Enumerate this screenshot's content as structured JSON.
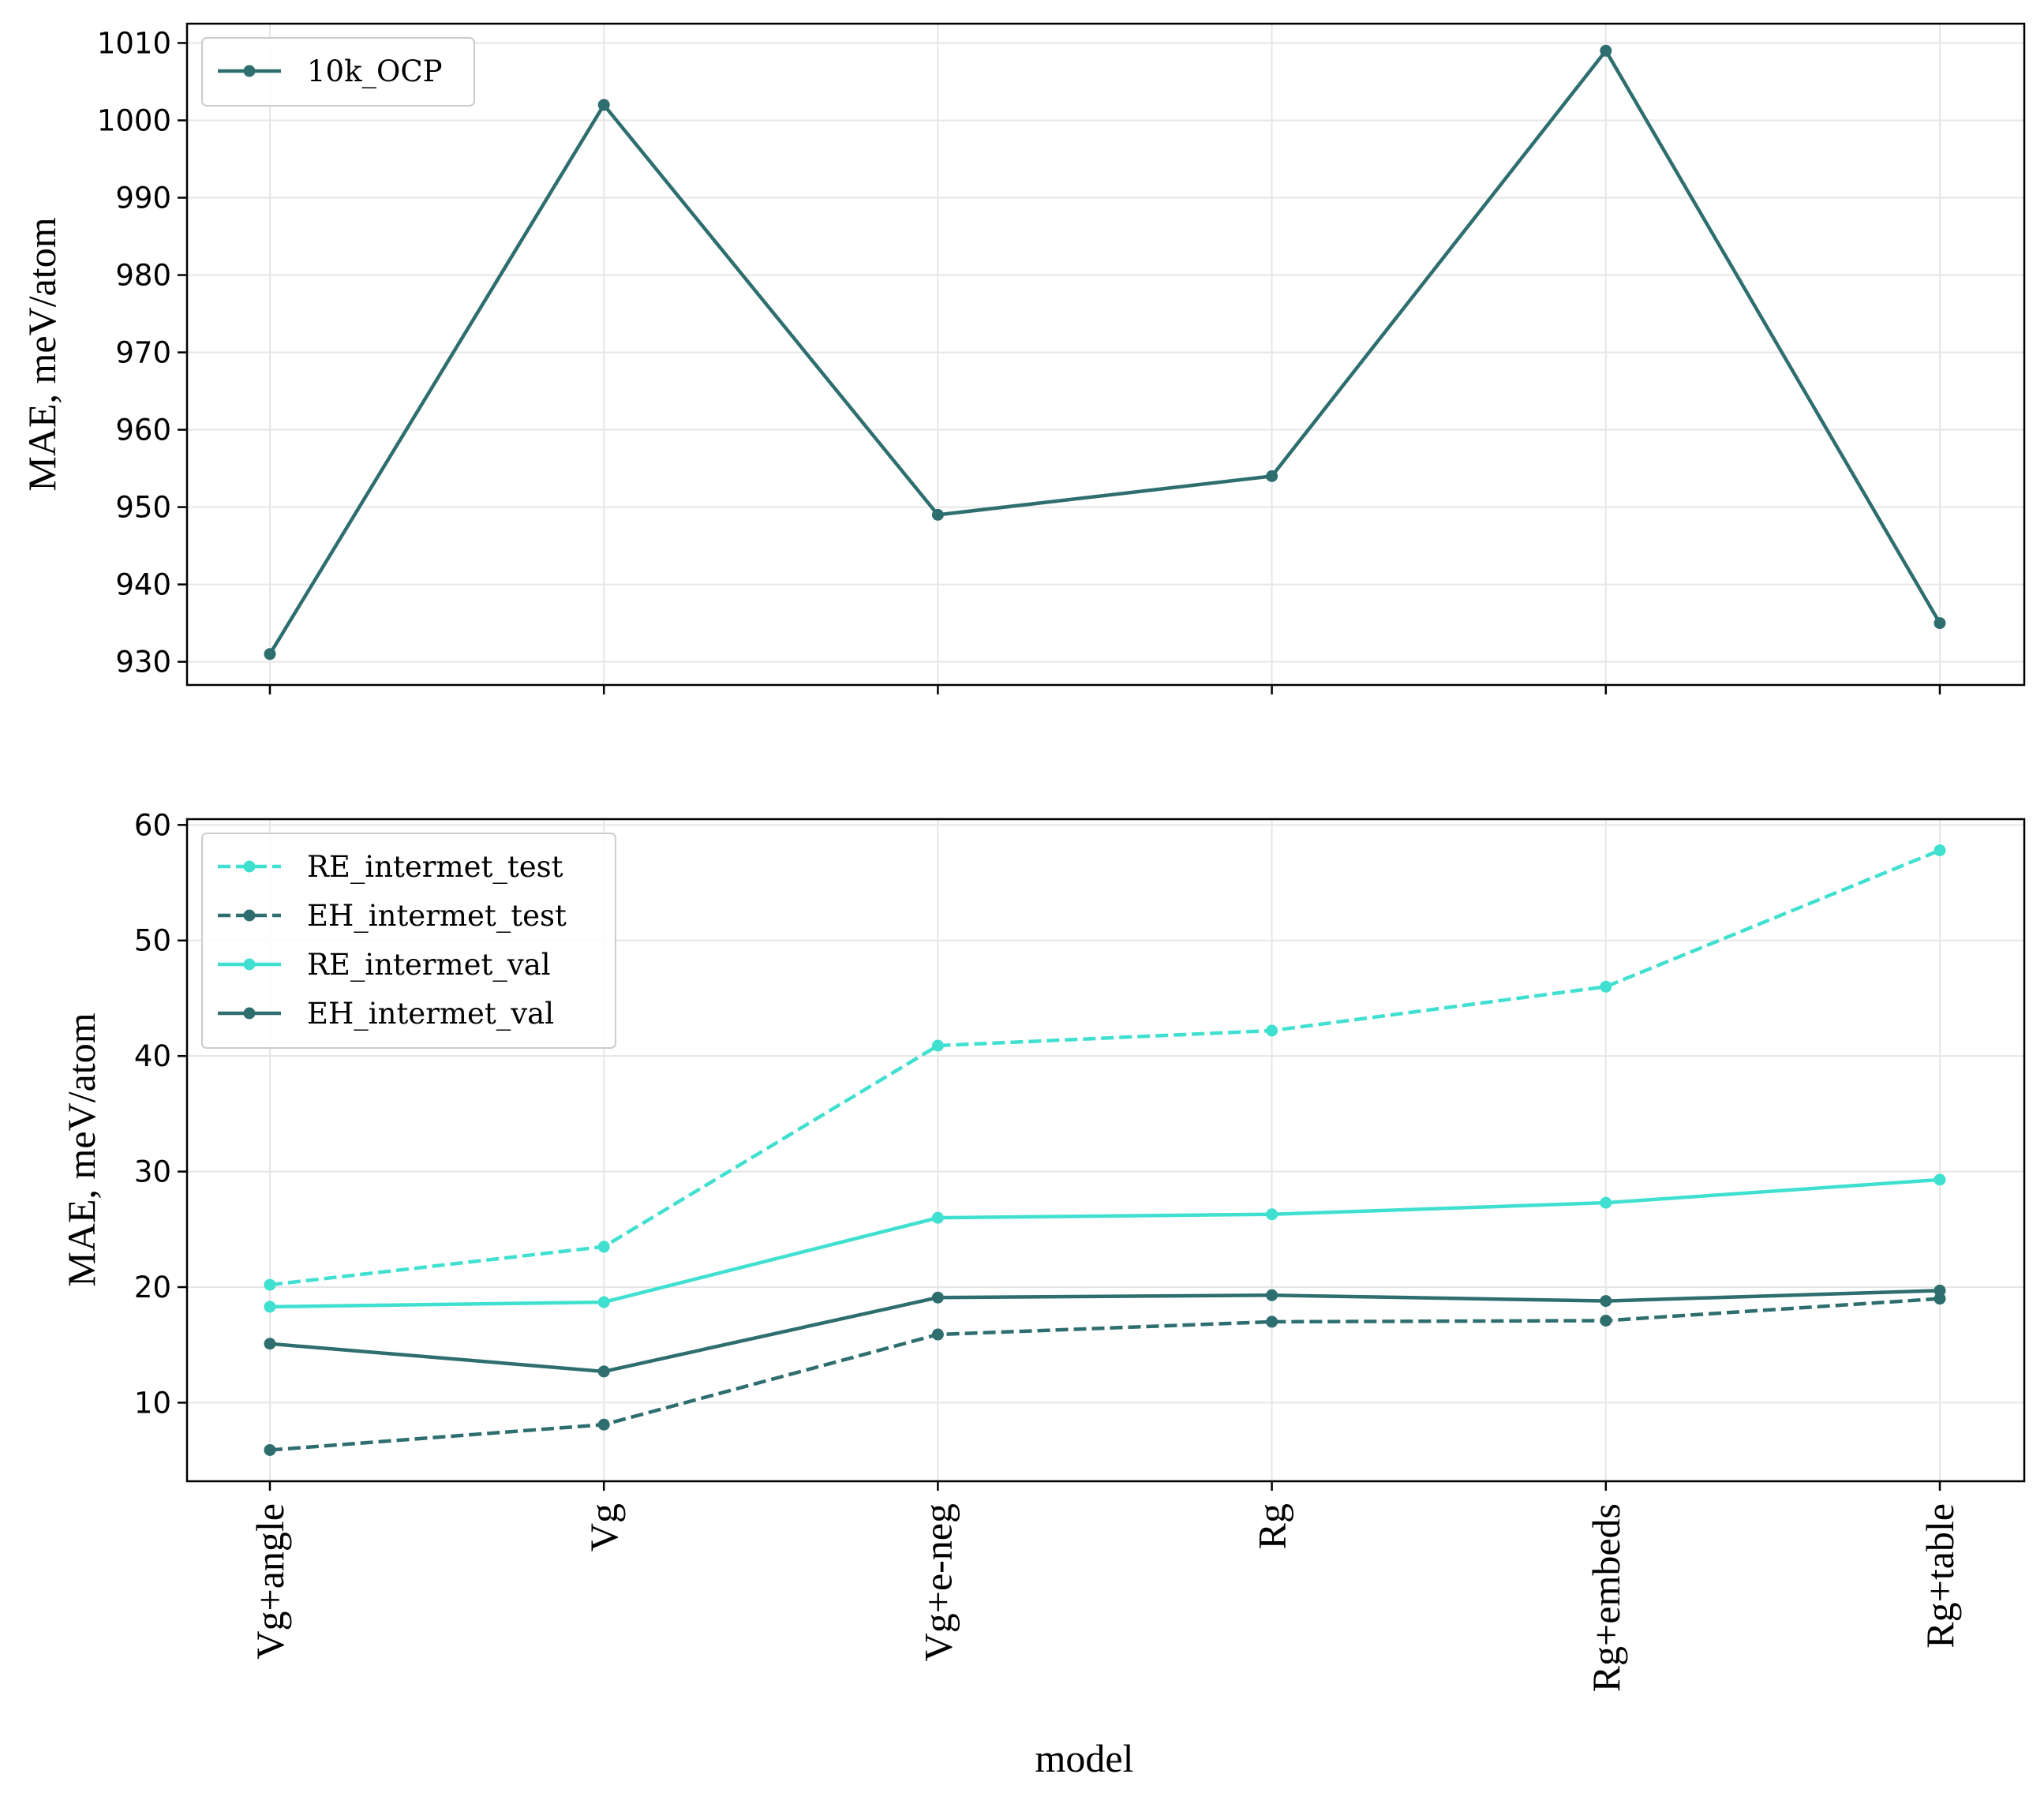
{
  "chart_data": [
    {
      "type": "line",
      "categories": [
        "Vg+angle",
        "Vg",
        "Vg+e-neg",
        "Rg",
        "Rg+embeds",
        "Rg+table"
      ],
      "ylabel": "MAE, meV/atom",
      "xlabel": "",
      "ylim": [
        927,
        1012.5
      ],
      "yticks": [
        930,
        940,
        950,
        960,
        970,
        980,
        990,
        1000,
        1010
      ],
      "show_x_tick_labels": false,
      "grid": true,
      "legend_position": "upper-left",
      "series": [
        {
          "name": "10k_OCP",
          "color": "#2e6e6e",
          "dashed": false,
          "values": [
            931,
            1002,
            949,
            954,
            1009,
            935
          ]
        }
      ]
    },
    {
      "type": "line",
      "categories": [
        "Vg+angle",
        "Vg",
        "Vg+e-neg",
        "Rg",
        "Rg+embeds",
        "Rg+table"
      ],
      "ylabel": "MAE, meV/atom",
      "xlabel": "model",
      "ylim": [
        3.2,
        60.5
      ],
      "yticks": [
        10,
        20,
        30,
        40,
        50,
        60
      ],
      "show_x_tick_labels": true,
      "grid": true,
      "legend_position": "upper-left",
      "series": [
        {
          "name": "RE_intermet_test",
          "color": "#40e0d0",
          "dashed": true,
          "values": [
            20.2,
            23.5,
            40.9,
            42.2,
            46.0,
            57.8
          ]
        },
        {
          "name": "EH_intermet_test",
          "color": "#2e6e6e",
          "dashed": true,
          "values": [
            5.9,
            8.1,
            15.9,
            17.0,
            17.1,
            19.0
          ]
        },
        {
          "name": "RE_intermet_val",
          "color": "#40e0d0",
          "dashed": false,
          "values": [
            18.3,
            18.7,
            26.0,
            26.3,
            27.3,
            29.3
          ]
        },
        {
          "name": "EH_intermet_val",
          "color": "#2e6e6e",
          "dashed": false,
          "values": [
            15.1,
            12.7,
            19.1,
            19.3,
            18.8,
            19.7
          ]
        }
      ]
    }
  ]
}
